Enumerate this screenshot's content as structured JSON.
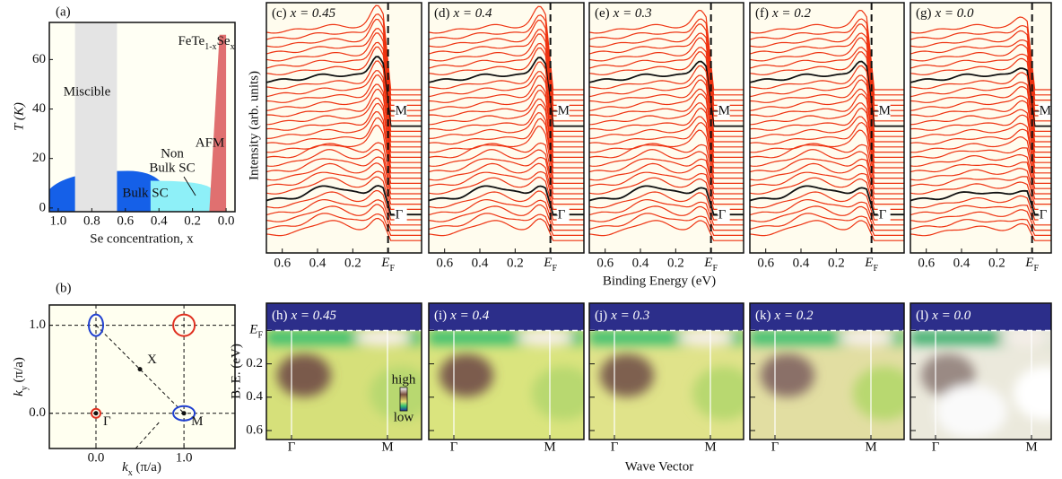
{
  "phase_diagram": {
    "label": "(a)",
    "formula": [
      "FeTe",
      "1-x",
      "Se",
      "x"
    ],
    "xlabel": "Se concentration, x",
    "ylabel": "T (K)",
    "xlim": [
      1.053,
      -0.053
    ],
    "ylim": [
      -1.5,
      75
    ],
    "xticks": [
      {
        "value": 1,
        "label": "1.0"
      },
      {
        "value": 0.8,
        "label": "0.8"
      },
      {
        "value": 0.6,
        "label": "0.6"
      },
      {
        "value": 0.4,
        "label": "0.4"
      },
      {
        "value": 0.2,
        "label": "0.2"
      },
      {
        "value": 0,
        "label": "0.0"
      }
    ],
    "yticks": [
      0,
      20,
      40,
      60
    ],
    "regions": [
      {
        "label": [
          "Bulk SC"
        ],
        "x": [
          1.053,
          0.33
        ],
        "T": 15,
        "color": "#1560e8"
      },
      {
        "label": [
          "Non",
          "Bulk SC"
        ],
        "x": [
          0.45,
          0.08
        ],
        "T": 11,
        "color": "#8ef0f8"
      },
      {
        "label": [
          "Miscible"
        ],
        "x": [
          0.9,
          0.65
        ],
        "color": "#e4e4e4"
      },
      {
        "label": [
          "AFM"
        ],
        "x": [
          0.1,
          0.0
        ],
        "T": 70,
        "color": "#e07070"
      }
    ]
  },
  "brillouin_zone": {
    "label": "(b)",
    "xlabel": [
      "k",
      "x",
      " (π/a)"
    ],
    "ylabel": [
      "k",
      "y",
      " (π/a)"
    ],
    "xlim": [
      -0.53,
      1.58
    ],
    "ylim": [
      -0.4,
      1.23
    ],
    "xticks": [
      {
        "value": 0,
        "label": "0.0"
      },
      {
        "value": 1,
        "label": "1.0"
      }
    ],
    "yticks": [
      {
        "value": 0,
        "label": "0.0"
      },
      {
        "value": 1,
        "label": "1.0"
      }
    ],
    "grid": true,
    "points": [
      {
        "label": "Γ",
        "x": 0,
        "y": 0
      },
      {
        "label": "M",
        "x": 1,
        "y": 0
      },
      {
        "label": "X",
        "x": 0.5,
        "y": 0.5
      }
    ],
    "pockets": [
      {
        "x": 0,
        "y": 0,
        "color": "#e03020"
      },
      {
        "x": 1,
        "y": 1,
        "color": "#e03020"
      },
      {
        "x": 0,
        "y": 1,
        "color": "#2040d0"
      },
      {
        "x": 1,
        "y": 0,
        "color": "#2040d0"
      }
    ]
  },
  "fermi_level": {
    "value": 0,
    "symbol": "E",
    "subscript": "F"
  },
  "edc": {
    "xlabel": "Binding Energy (eV)",
    "ylabel": "Intensity (arb. units)",
    "xlim": [
      0.69,
      -0.19
    ],
    "xticks": [
      {
        "value": 0.6,
        "label": "0.6"
      },
      {
        "value": 0.4,
        "label": "0.4"
      },
      {
        "value": 0.2,
        "label": "0.2"
      }
    ],
    "markers": [
      "M",
      "Γ"
    ],
    "panels": [
      {
        "label": "(c)",
        "composition": "x = 0.45"
      },
      {
        "label": "(d)",
        "composition": "x = 0.4"
      },
      {
        "label": "(e)",
        "composition": "x = 0.3"
      },
      {
        "label": "(f)",
        "composition": "x = 0.2"
      },
      {
        "label": "(g)",
        "composition": "x = 0.0"
      }
    ]
  },
  "maps": {
    "xlabel": "Wave Vector",
    "ylabel": "B. E. (eV)",
    "ylim": [
      -0.164,
      0.654
    ],
    "yticks": [
      {
        "value": 0.2,
        "label": "0.2"
      },
      {
        "value": 0.4,
        "label": "0.4"
      },
      {
        "value": 0.6,
        "label": "0.6"
      }
    ],
    "categories": [
      "Γ",
      "M"
    ],
    "colorbar": [
      "high",
      "low"
    ],
    "panels": [
      {
        "label": "(h)",
        "composition": "x = 0.45"
      },
      {
        "label": "(i)",
        "composition": "x = 0.4"
      },
      {
        "label": "(j)",
        "composition": "x = 0.3"
      },
      {
        "label": "(k)",
        "composition": "x = 0.2"
      },
      {
        "label": "(l)",
        "composition": "x = 0.0"
      }
    ]
  }
}
